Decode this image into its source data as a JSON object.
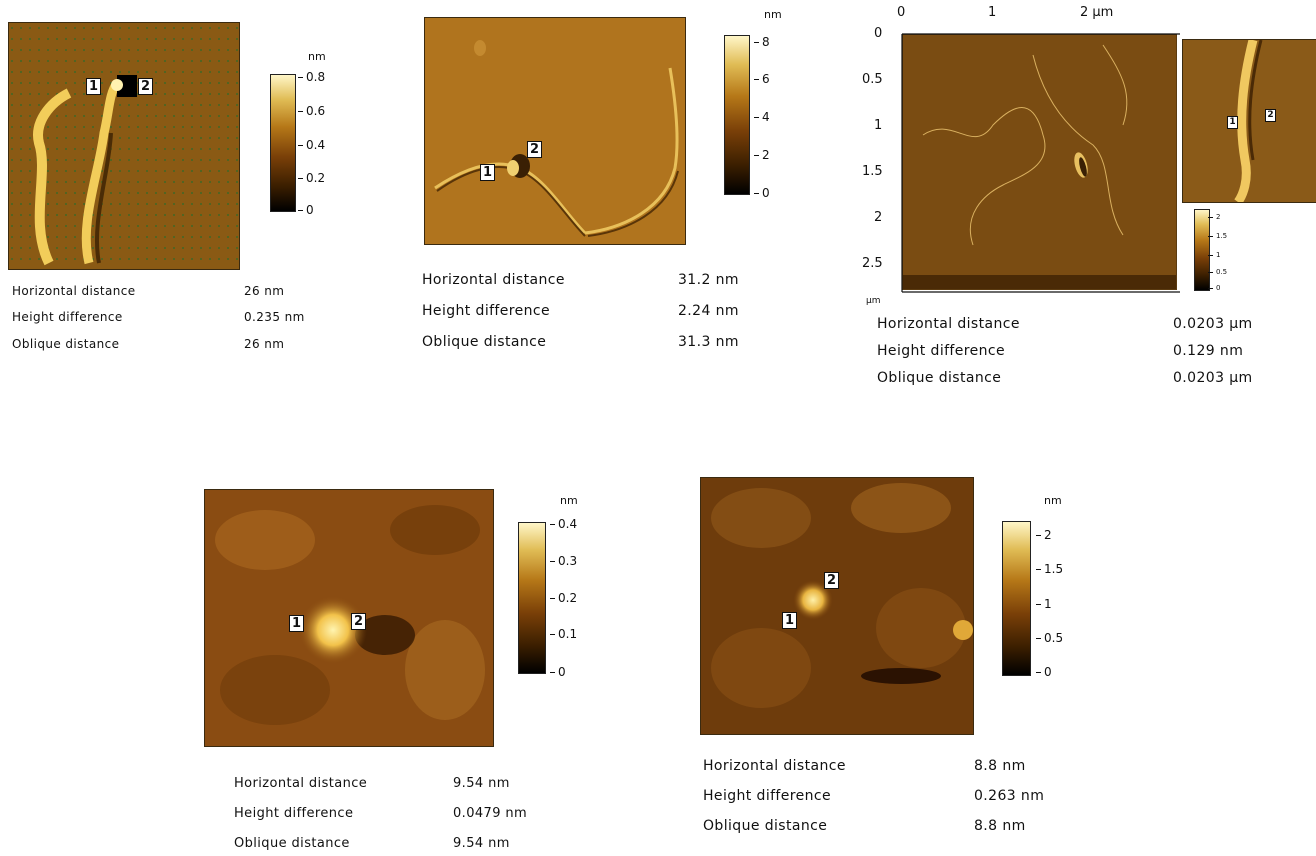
{
  "panels": [
    {
      "colorbar": {
        "unit": "nm",
        "ticks": [
          "0.8",
          "0.6",
          "0.4",
          "0.2",
          "0"
        ]
      },
      "markers": [
        "1",
        "2"
      ],
      "measurements": [
        {
          "label": "Horizontal distance",
          "value": "26 nm"
        },
        {
          "label": "Height difference",
          "value": "0.235 nm"
        },
        {
          "label": "Oblique distance",
          "value": "26 nm"
        }
      ]
    },
    {
      "colorbar": {
        "unit": "nm",
        "ticks": [
          "8",
          "6",
          "4",
          "2",
          "0"
        ]
      },
      "markers": [
        "1",
        "2"
      ],
      "measurements": [
        {
          "label": "Horizontal distance",
          "value": "31.2 nm"
        },
        {
          "label": "Height difference",
          "value": "2.24 nm"
        },
        {
          "label": "Oblique distance",
          "value": "31.3 nm"
        }
      ]
    },
    {
      "x_axis": {
        "ticks": [
          "0",
          "1",
          "2 µm"
        ]
      },
      "y_axis": {
        "ticks": [
          "0",
          "0.5",
          "1",
          "1.5",
          "2",
          "2.5"
        ],
        "unit": "µm"
      },
      "colorbar": {
        "ticks": [
          "2",
          "1.5",
          "1",
          "0.5",
          "0"
        ]
      },
      "markers": [
        "1",
        "2"
      ],
      "measurements": [
        {
          "label": "Horizontal distance",
          "value": "0.0203 µm"
        },
        {
          "label": "Height difference",
          "value": "0.129 nm"
        },
        {
          "label": "Oblique distance",
          "value": "0.0203 µm"
        }
      ]
    },
    {
      "colorbar": {
        "unit": "nm",
        "ticks": [
          "0.4",
          "0.3",
          "0.2",
          "0.1",
          "0"
        ]
      },
      "markers": [
        "1",
        "2"
      ],
      "measurements": [
        {
          "label": "Horizontal distance",
          "value": "9.54 nm"
        },
        {
          "label": "Height difference",
          "value": "0.0479 nm"
        },
        {
          "label": "Oblique distance",
          "value": "9.54 nm"
        }
      ]
    },
    {
      "colorbar": {
        "unit": "nm",
        "ticks": [
          "2",
          "1.5",
          "1",
          "0.5",
          "0"
        ]
      },
      "markers": [
        "1",
        "2"
      ],
      "measurements": [
        {
          "label": "Horizontal distance",
          "value": "8.8 nm"
        },
        {
          "label": "Height difference",
          "value": "0.263 nm"
        },
        {
          "label": "Oblique distance",
          "value": "8.8 nm"
        }
      ]
    }
  ]
}
